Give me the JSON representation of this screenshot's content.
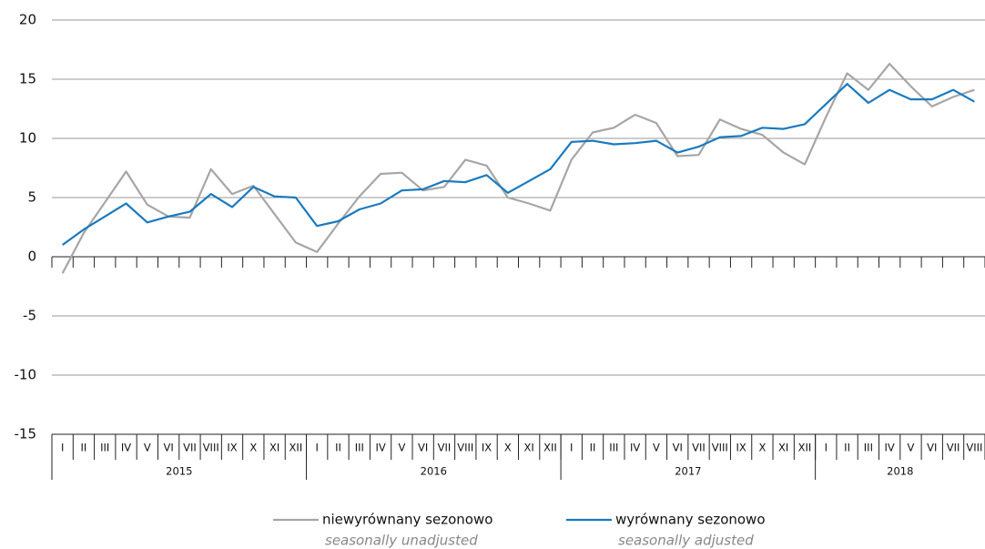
{
  "chart_data": {
    "type": "line",
    "categories": [
      "I",
      "II",
      "III",
      "IV",
      "V",
      "VI",
      "VII",
      "VIII",
      "IX",
      "X",
      "XI",
      "XII",
      "I",
      "II",
      "III",
      "IV",
      "V",
      "VI",
      "VII",
      "VIII",
      "IX",
      "X",
      "XI",
      "XII",
      "I",
      "II",
      "III",
      "IV",
      "V",
      "VI",
      "VII",
      "VIII",
      "IX",
      "X",
      "XI",
      "XII",
      "I",
      "II",
      "III",
      "IV",
      "V",
      "VI",
      "VII",
      "VIII"
    ],
    "years": [
      "2015",
      "2016",
      "2017",
      "2018"
    ],
    "series": [
      {
        "name": "niewyrównany sezonowo",
        "name_en": "seasonally unadjusted",
        "color": "#a6a6a6",
        "values": [
          -1.4,
          2.0,
          4.6,
          7.2,
          4.4,
          3.4,
          3.3,
          7.4,
          5.3,
          6.0,
          3.6,
          1.2,
          0.4,
          2.8,
          5.1,
          7.0,
          7.1,
          5.6,
          5.9,
          8.2,
          7.7,
          5.0,
          4.5,
          3.9,
          8.2,
          10.5,
          10.9,
          12.0,
          11.3,
          8.5,
          8.6,
          11.6,
          10.8,
          10.3,
          8.8,
          7.8,
          11.8,
          15.5,
          14.1,
          16.3,
          14.4,
          12.7,
          13.5,
          14.1
        ]
      },
      {
        "name": "wyrównany sezonowo",
        "name_en": "seasonally adjusted",
        "color": "#1a7abf",
        "values": [
          1.0,
          2.3,
          3.4,
          4.5,
          2.9,
          3.4,
          3.8,
          5.3,
          4.2,
          5.9,
          5.1,
          5.0,
          2.6,
          3.0,
          4.0,
          4.5,
          5.6,
          5.7,
          6.4,
          6.3,
          6.9,
          5.4,
          6.4,
          7.4,
          9.7,
          9.8,
          9.5,
          9.6,
          9.8,
          8.8,
          9.3,
          10.1,
          10.2,
          10.9,
          10.8,
          11.2,
          12.9,
          14.6,
          13.0,
          14.1,
          13.3,
          13.3,
          14.1,
          13.1
        ]
      }
    ],
    "ylim": [
      -15,
      20
    ],
    "yticks": [
      -15,
      -10,
      -5,
      0,
      5,
      10,
      15,
      20
    ],
    "grid": true
  }
}
